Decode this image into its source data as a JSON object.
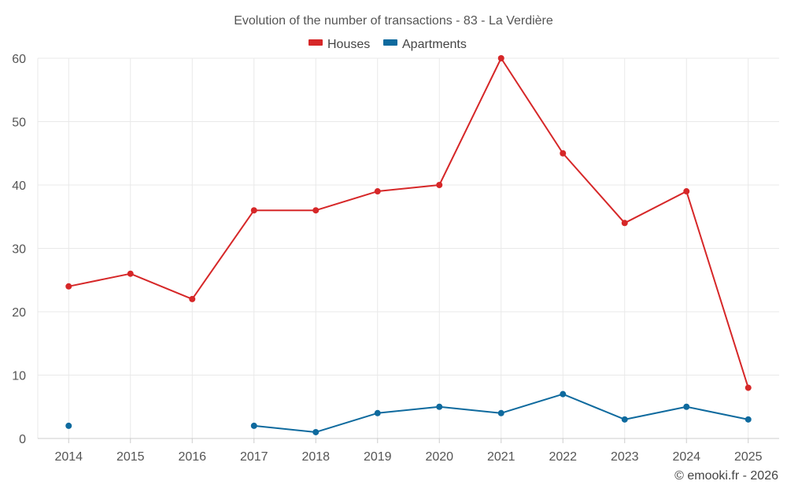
{
  "chart_data": {
    "type": "line",
    "title": "Evolution of the number of transactions - 83 - La Verdière",
    "xlabel": "",
    "ylabel": "",
    "ylim": [
      0,
      60
    ],
    "yticks": [
      0,
      10,
      20,
      30,
      40,
      50,
      60
    ],
    "grid": true,
    "legend_position": "top-center",
    "categories": [
      "2014",
      "2015",
      "2016",
      "2017",
      "2018",
      "2019",
      "2020",
      "2021",
      "2022",
      "2023",
      "2024",
      "2025"
    ],
    "series": [
      {
        "name": "Houses",
        "color": "#d62728",
        "values": [
          24,
          26,
          22,
          36,
          36,
          39,
          40,
          60,
          45,
          34,
          39,
          8
        ]
      },
      {
        "name": "Apartments",
        "color": "#0e6a9e",
        "values": [
          2,
          null,
          null,
          2,
          1,
          4,
          5,
          4,
          7,
          3,
          5,
          3
        ]
      }
    ]
  },
  "credit": "© emooki.fr - 2026"
}
